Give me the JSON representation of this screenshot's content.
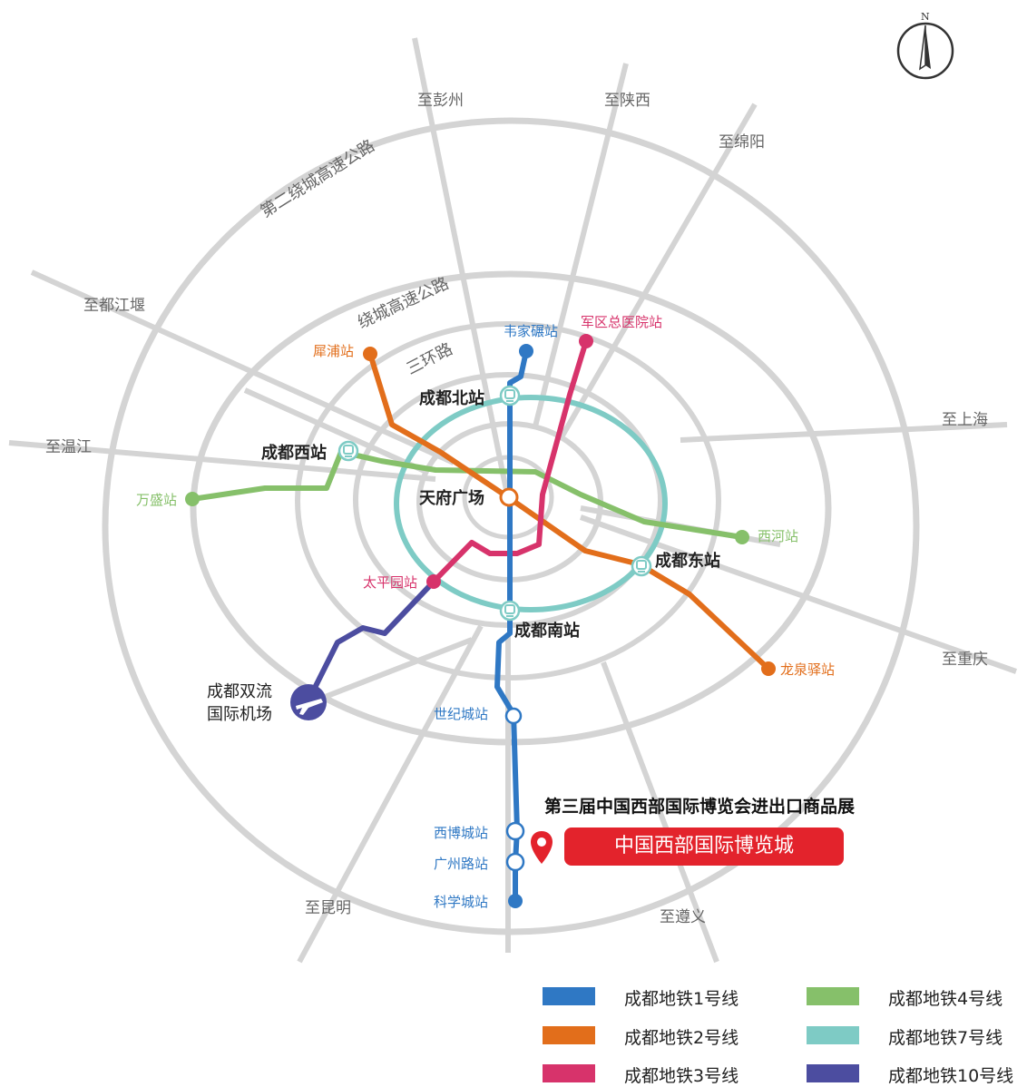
{
  "compass": {
    "label": "N"
  },
  "destinations": {
    "pengzhou": "至彭州",
    "shaanxi": "至陕西",
    "mianyang": "至绵阳",
    "dujiangyan": "至都江堰",
    "shanghai": "至上海",
    "wenjiang": "至温江",
    "chongqing": "至重庆",
    "kunming": "至昆明",
    "zunyi": "至遵义"
  },
  "ring_roads": {
    "second_ring_expressway": "第二绕城高速公路",
    "ring_expressway": "绕城高速公路",
    "third_ring": "三环路"
  },
  "stations": {
    "weijianian": "韦家碾站",
    "junqu_hospital": "军区总医院站",
    "xipu": "犀浦站",
    "chengdu_north": "成都北站",
    "chengdu_west": "成都西站",
    "wansheng": "万盛站",
    "tianfu_square": "天府广场",
    "xihe": "西河站",
    "chengdu_east": "成都东站",
    "taipingyuan": "太平园站",
    "chengdu_south": "成都南站",
    "longquanyi": "龙泉驿站",
    "airport_line1": "成都双流",
    "airport_line2": "国际机场",
    "century_city": "世纪城站",
    "xibocheng": "西博城站",
    "guangzhou_road": "广州路站",
    "kexuecheng": "科学城站"
  },
  "expo": {
    "title": "第三届中国西部国际博览会进出口商品展",
    "venue": "中国西部国际博览城"
  },
  "legend": [
    {
      "label": "成都地铁1号线",
      "color": "#2f78c4"
    },
    {
      "label": "成都地铁4号线",
      "color": "#86c06a"
    },
    {
      "label": "成都地铁2号线",
      "color": "#e26e1b"
    },
    {
      "label": "成都地铁7号线",
      "color": "#7ecbc5"
    },
    {
      "label": "成都地铁3号线",
      "color": "#d7336b"
    },
    {
      "label": "成都地铁10号线",
      "color": "#4c4da0"
    }
  ],
  "colors": {
    "line1": "#2f78c4",
    "line2": "#e26e1b",
    "line3": "#d7336b",
    "line4": "#86c06a",
    "line7": "#7ecbc5",
    "line10": "#4c4da0",
    "road": "#d4d4d4",
    "expo_red": "#e3232c"
  }
}
